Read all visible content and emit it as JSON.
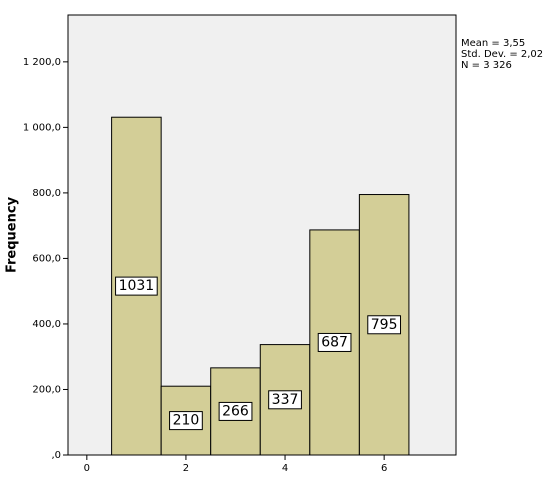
{
  "chart_data": {
    "type": "histogram",
    "y_label": "Frequency",
    "annotations": [
      "Mean = 3,55",
      "Std. Dev. = 2,02",
      "N = 3 326"
    ],
    "bins": [
      0.5,
      1.5,
      2.5,
      3.5,
      4.5,
      5.5,
      6.5
    ],
    "values": [
      1031,
      210,
      266,
      337,
      687,
      795
    ],
    "color": "#d3ce97",
    "xlim": [
      -0.38,
      7.45
    ],
    "xticks": [
      0,
      2,
      4,
      6
    ],
    "ylim": [
      0,
      1343
    ],
    "yticks": [
      {
        "value": 0,
        "label": ",0"
      },
      {
        "value": 200,
        "label": "200,0"
      },
      {
        "value": 400,
        "label": "400,0"
      },
      {
        "value": 600,
        "label": "600,0"
      },
      {
        "value": 800,
        "label": "800,0"
      },
      {
        "value": 1000,
        "label": "1 000,0"
      },
      {
        "value": 1200,
        "label": "1 200,0"
      }
    ]
  }
}
